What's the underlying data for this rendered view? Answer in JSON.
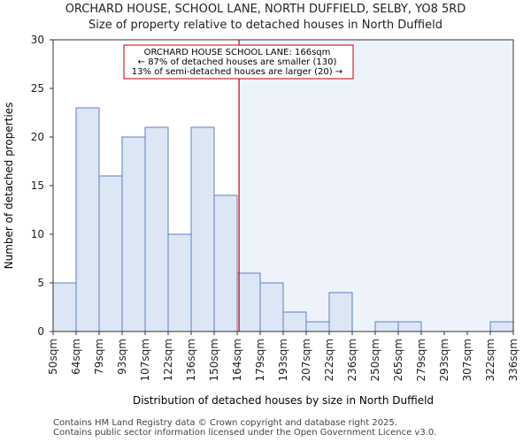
{
  "title_line1": "ORCHARD HOUSE, SCHOOL LANE, NORTH DUFFIELD, SELBY, YO8 5RD",
  "title_line2": "Size of property relative to detached houses in North Duffield",
  "footer_line1": "Contains HM Land Registry data © Crown copyright and database right 2025.",
  "footer_line2": "Contains public sector information licensed under the Open Government Licence v3.0.",
  "chart_data": {
    "type": "bar",
    "xlabel": "Distribution of detached houses by size in North Duffield",
    "ylabel": "Number of detached properties",
    "ylim": [
      0,
      30
    ],
    "yticks": [
      0,
      5,
      10,
      15,
      20,
      25,
      30
    ],
    "bin_edges": [
      "50sqm",
      "64sqm",
      "79sqm",
      "93sqm",
      "107sqm",
      "122sqm",
      "136sqm",
      "150sqm",
      "164sqm",
      "179sqm",
      "193sqm",
      "207sqm",
      "222sqm",
      "236sqm",
      "250sqm",
      "265sqm",
      "279sqm",
      "293sqm",
      "307sqm",
      "322sqm",
      "336sqm"
    ],
    "values": [
      5,
      23,
      16,
      20,
      21,
      10,
      21,
      14,
      6,
      5,
      2,
      1,
      4,
      0,
      1,
      1,
      0,
      0,
      0,
      1
    ],
    "property_size_sqm": 166,
    "property_bin_position": 8.08,
    "annotation": {
      "line1": "ORCHARD HOUSE SCHOOL LANE: 166sqm",
      "line2": "← 87% of detached houses are smaller (130)",
      "line3": "13% of semi-detached houses are larger (20) →"
    },
    "colors": {
      "bar_fill": "#dce6f4",
      "bar_stroke": "#5b82c0",
      "shade": "#eef2fb",
      "marker": "#c00000"
    }
  }
}
